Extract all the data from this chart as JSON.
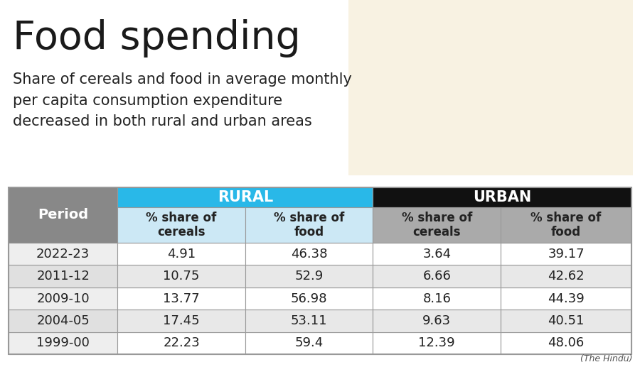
{
  "title": "Food spending",
  "subtitle": "Share of cereals and food in average monthly\nper capita consumption expenditure\ndecreased in both rural and urban areas",
  "source": "(The Hindu)",
  "periods": [
    "1999-00",
    "2004-05",
    "2009-10",
    "2011-12",
    "2022-23"
  ],
  "rural_cereals": [
    "22.23",
    "17.45",
    "13.77",
    "10.75",
    "4.91"
  ],
  "rural_food": [
    "59.4",
    "53.11",
    "56.98",
    "52.9",
    "46.38"
  ],
  "urban_cereals": [
    "12.39",
    "9.63",
    "8.16",
    "6.66",
    "3.64"
  ],
  "urban_food": [
    "48.06",
    "40.51",
    "44.39",
    "42.62",
    "39.17"
  ],
  "col_headers": [
    "% share of\ncereals",
    "% share of\nfood",
    "% share of\ncereals",
    "% share of\nfood"
  ],
  "rural_header": "RURAL",
  "urban_header": "URBAN",
  "period_header": "Period",
  "bg_color": "#ffffff",
  "header_rural_bg": "#29b8e8",
  "header_urban_bg": "#111111",
  "subheader_rural_bg": "#cce8f5",
  "subheader_urban_bg": "#aaaaaa",
  "period_col_bg": "#888888",
  "data_row_bg_white": "#ffffff",
  "data_row_bg_gray": "#e8e8e8",
  "header_text_white": "#ffffff",
  "data_text_color": "#222222",
  "title_color": "#1a1a1a",
  "subtitle_color": "#222222",
  "source_color": "#555555",
  "table_border_color": "#999999",
  "row_line_color": "#cccccc",
  "title_fontsize": 40,
  "subtitle_fontsize": 15,
  "header_fontsize": 13,
  "subheader_fontsize": 12,
  "data_fontsize": 13,
  "period_fontsize": 13
}
